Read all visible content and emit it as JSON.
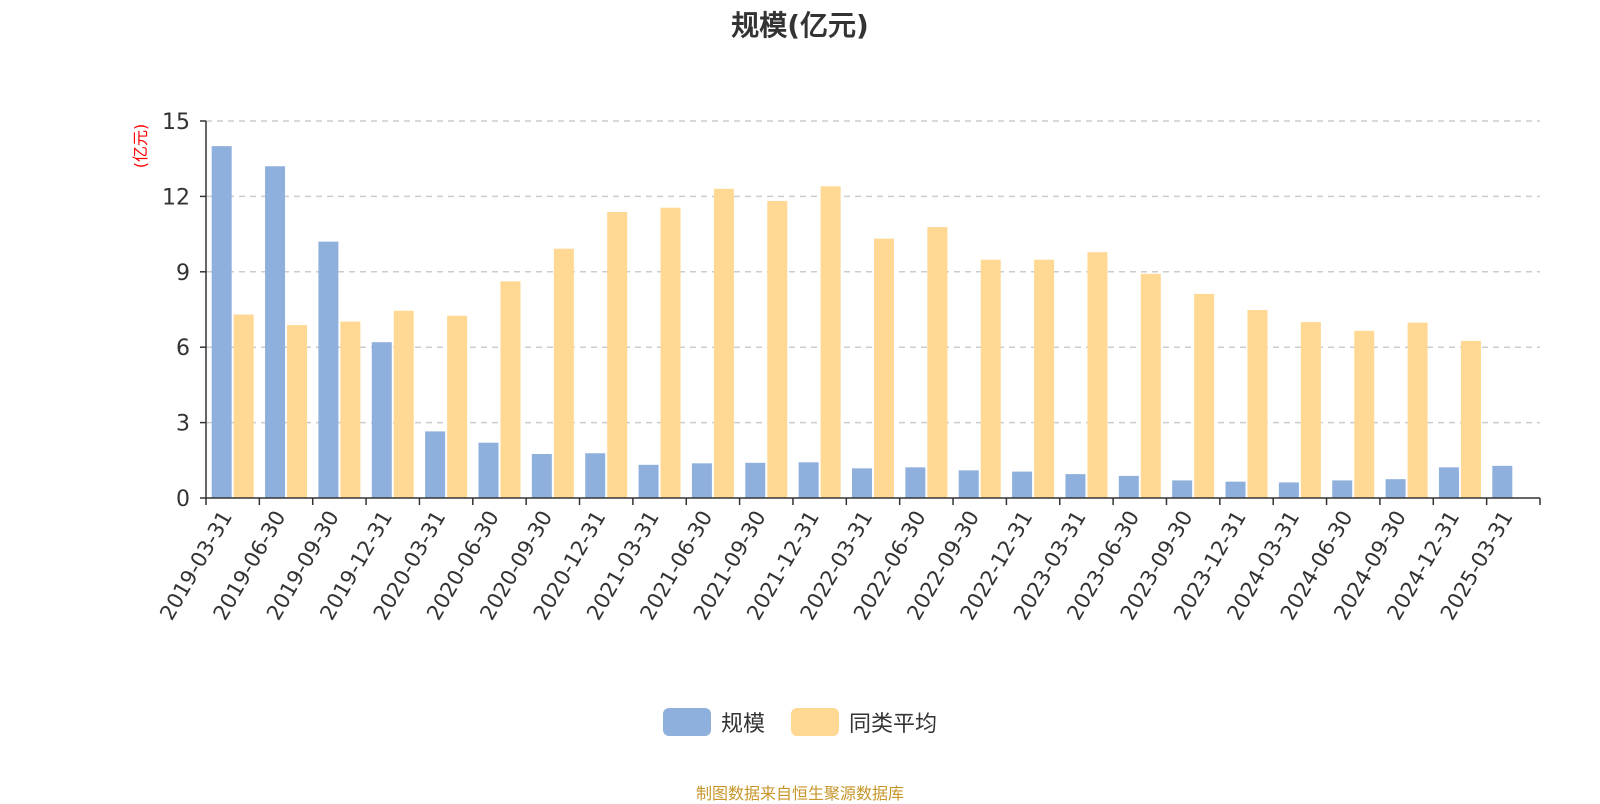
{
  "chart_data": {
    "type": "bar",
    "title": "规模(亿元)",
    "ylabel": "(亿元)",
    "xlabel": "",
    "ylim": [
      0,
      15
    ],
    "yticks": [
      0,
      3,
      6,
      9,
      12,
      15
    ],
    "grid": "horizontal-dashed",
    "legend_position": "bottom-center",
    "categories": [
      "2019-03-31",
      "2019-06-30",
      "2019-09-30",
      "2019-12-31",
      "2020-03-31",
      "2020-06-30",
      "2020-09-30",
      "2020-12-31",
      "2021-03-31",
      "2021-06-30",
      "2021-09-30",
      "2021-12-31",
      "2022-03-31",
      "2022-06-30",
      "2022-09-30",
      "2022-12-31",
      "2023-03-31",
      "2023-06-30",
      "2023-09-30",
      "2023-12-31",
      "2024-03-31",
      "2024-06-30",
      "2024-09-30",
      "2024-12-31",
      "2025-03-31"
    ],
    "series": [
      {
        "name": "规模",
        "color": "#8fb0dc",
        "values": [
          14.0,
          13.2,
          10.2,
          6.2,
          2.65,
          2.2,
          1.75,
          1.78,
          1.32,
          1.38,
          1.4,
          1.42,
          1.18,
          1.22,
          1.1,
          1.05,
          0.95,
          0.88,
          0.7,
          0.65,
          0.62,
          0.7,
          0.75,
          1.22,
          1.28
        ]
      },
      {
        "name": "同类平均",
        "color": "#ffd894",
        "values": [
          7.3,
          6.88,
          7.02,
          7.45,
          7.25,
          8.62,
          9.92,
          11.38,
          11.55,
          12.3,
          11.82,
          12.4,
          10.32,
          10.78,
          9.48,
          9.48,
          9.78,
          8.92,
          8.12,
          7.48,
          7.0,
          6.65,
          6.98,
          6.25,
          null
        ]
      }
    ]
  },
  "legend": {
    "items": [
      {
        "label": "规模",
        "color": "#8fb0dc"
      },
      {
        "label": "同类平均",
        "color": "#ffd894"
      }
    ]
  },
  "source_note": "制图数据来自恒生聚源数据库",
  "colors": {
    "axis": "#333333",
    "grid": "#cccccc",
    "ylabel": "#ff0000",
    "source": "#c7962a"
  }
}
